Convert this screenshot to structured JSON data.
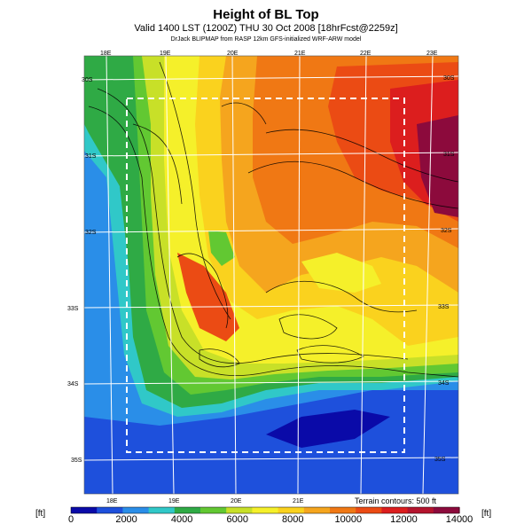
{
  "header": {
    "title": "Height of BL Top",
    "valid_line": "Valid 1400 LST (1200Z) THU 30 Oct 2008",
    "valid_suffix": "[18hrFcst@2259z]",
    "model_line": "DrJack BLIPMAP from RASP 12km GFS-initialized WRF-ARW model"
  },
  "axes": {
    "top_lon_labels": [
      "18E",
      "19E",
      "20E",
      "21E",
      "22E",
      "23E"
    ],
    "bottom_lon_labels": [
      "18E",
      "19E",
      "20E",
      "21E"
    ],
    "left_lat_labels": [
      "30S",
      "31S",
      "32S",
      "33S",
      "34S",
      "35S"
    ],
    "right_lat_labels": [
      "30S",
      "31S",
      "32S",
      "33S",
      "34S",
      "35S"
    ]
  },
  "terrain_note": "Terrain contours: 500 ft",
  "color_scale": {
    "unit": "[ft]",
    "tick_labels": [
      "0",
      "2000",
      "4000",
      "6000",
      "8000",
      "10000",
      "12000",
      "14000"
    ],
    "colors": [
      "#0a0aa8",
      "#1e50dc",
      "#2a8ee8",
      "#30c8c8",
      "#2faa45",
      "#62c832",
      "#c8e028",
      "#f5f02a",
      "#fad21e",
      "#f5a51e",
      "#f07814",
      "#eb4b14",
      "#dc1e1e",
      "#b4142d",
      "#8c0a3c"
    ]
  },
  "regions": {
    "ocean_west": "#2a8ee8",
    "ocean_south": "#1e50dc",
    "max_zone": "#8c0a3c"
  }
}
